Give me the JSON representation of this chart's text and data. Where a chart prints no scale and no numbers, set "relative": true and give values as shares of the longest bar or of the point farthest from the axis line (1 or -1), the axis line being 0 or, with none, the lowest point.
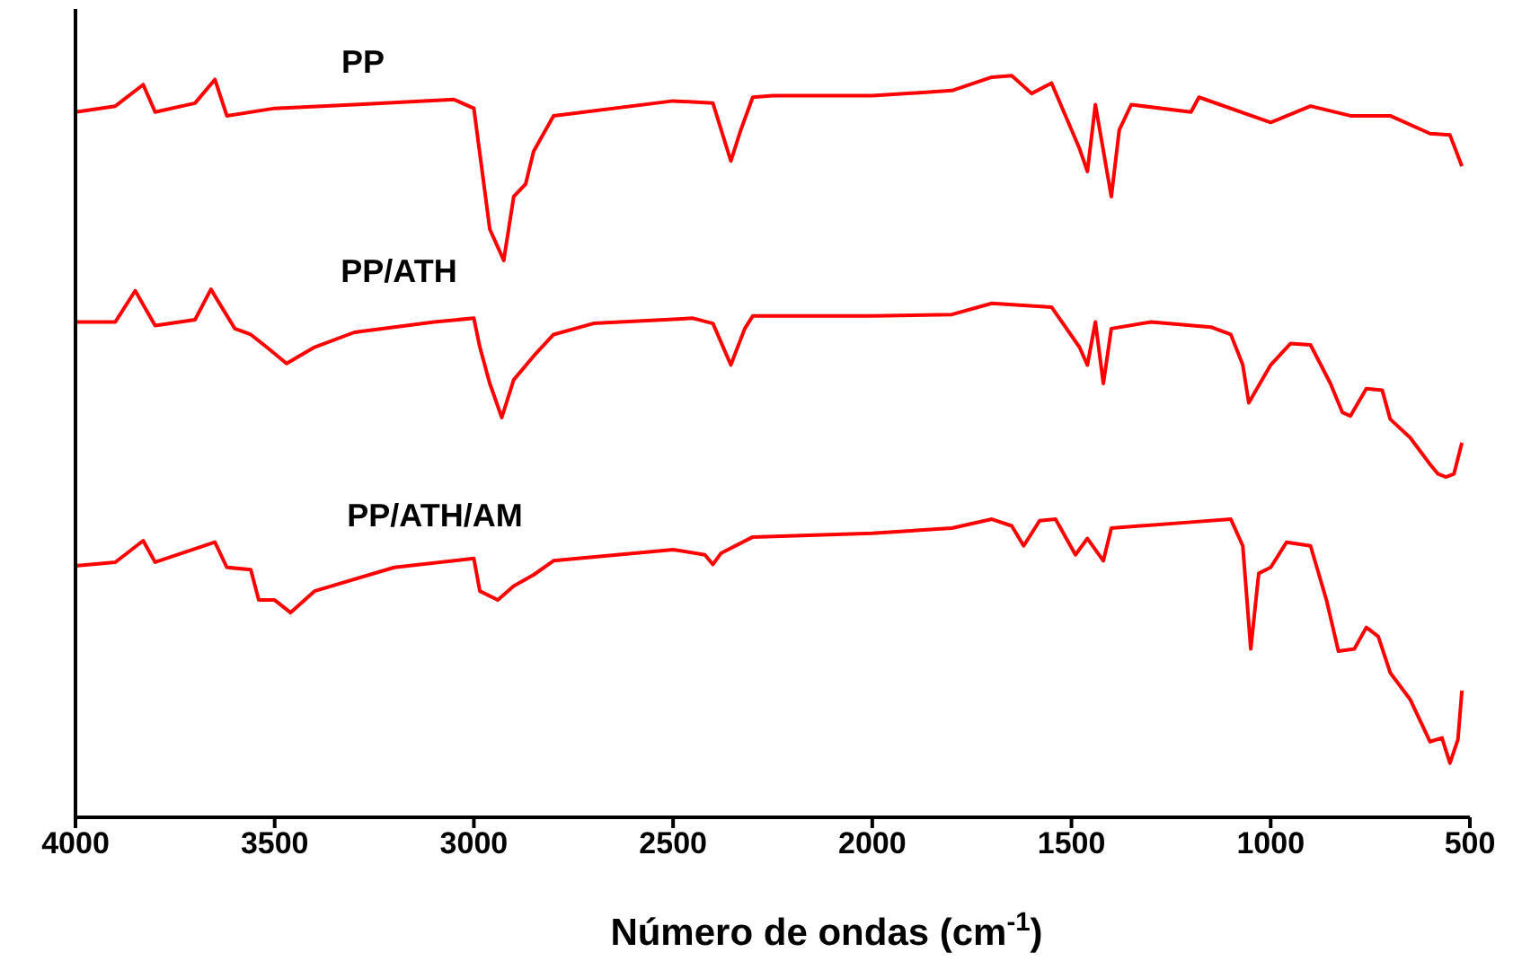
{
  "chart_data": {
    "type": "line",
    "relative": true,
    "xlabel": "Número de ondas (cm$^{-1}$)",
    "xlim": [
      4000,
      500
    ],
    "xticks": [
      4000,
      3500,
      3000,
      2500,
      2000,
      1500,
      1000,
      500
    ],
    "marker": "none",
    "line_style": "solid",
    "series": [
      {
        "name": "PP",
        "color": "#ff0000",
        "x": [
          4000,
          3900,
          3830,
          3800,
          3700,
          3650,
          3620,
          3500,
          3300,
          3050,
          3000,
          2960,
          2925,
          2900,
          2870,
          2850,
          2800,
          2500,
          2400,
          2355,
          2330,
          2300,
          2250,
          2000,
          1800,
          1700,
          1650,
          1600,
          1550,
          1480,
          1460,
          1440,
          1400,
          1380,
          1350,
          1200,
          1180,
          1000,
          900,
          800,
          700,
          600,
          550,
          520
        ],
        "values": [
          0.951,
          0.959,
          0.988,
          0.951,
          0.963,
          0.995,
          0.946,
          0.956,
          0.961,
          0.968,
          0.956,
          0.793,
          0.751,
          0.837,
          0.854,
          0.898,
          0.946,
          0.966,
          0.963,
          0.885,
          0.927,
          0.971,
          0.973,
          0.973,
          0.98,
          0.998,
          1,
          0.976,
          0.99,
          0.902,
          0.871,
          0.961,
          0.837,
          0.927,
          0.961,
          0.951,
          0.971,
          0.937,
          0.959,
          0.946,
          0.946,
          0.922,
          0.92,
          0.878
        ]
      },
      {
        "name": "PP/ATH",
        "color": "#ff0000",
        "x": [
          4000,
          3900,
          3850,
          3800,
          3700,
          3660,
          3600,
          3560,
          3520,
          3470,
          3400,
          3300,
          3100,
          3000,
          2985,
          2960,
          2930,
          2900,
          2850,
          2800,
          2700,
          2450,
          2400,
          2355,
          2320,
          2300,
          2000,
          1800,
          1700,
          1550,
          1480,
          1460,
          1440,
          1420,
          1400,
          1300,
          1150,
          1100,
          1070,
          1055,
          1000,
          950,
          900,
          850,
          820,
          800,
          760,
          720,
          700,
          650,
          600,
          580,
          560,
          540,
          520
        ],
        "values": [
          0.668,
          0.668,
          0.71,
          0.663,
          0.671,
          0.712,
          0.659,
          0.651,
          0.634,
          0.612,
          0.634,
          0.654,
          0.668,
          0.673,
          0.634,
          0.585,
          0.539,
          0.59,
          0.622,
          0.651,
          0.666,
          0.673,
          0.666,
          0.61,
          0.659,
          0.676,
          0.676,
          0.678,
          0.693,
          0.688,
          0.634,
          0.61,
          0.668,
          0.585,
          0.659,
          0.668,
          0.661,
          0.651,
          0.61,
          0.559,
          0.61,
          0.639,
          0.637,
          0.585,
          0.546,
          0.541,
          0.578,
          0.576,
          0.537,
          0.512,
          0.476,
          0.463,
          0.459,
          0.463,
          0.505
        ]
      },
      {
        "name": "PP/ATH/AM",
        "color": "#ff0000",
        "x": [
          4000,
          3900,
          3830,
          3800,
          3650,
          3620,
          3560,
          3540,
          3500,
          3460,
          3400,
          3200,
          3000,
          2985,
          2940,
          2900,
          2850,
          2800,
          2500,
          2420,
          2400,
          2380,
          2300,
          2000,
          1800,
          1700,
          1650,
          1620,
          1580,
          1540,
          1490,
          1460,
          1420,
          1400,
          1200,
          1100,
          1070,
          1050,
          1030,
          1000,
          960,
          900,
          860,
          830,
          790,
          760,
          730,
          700,
          650,
          600,
          570,
          550,
          530,
          520
        ],
        "values": [
          0.339,
          0.344,
          0.373,
          0.344,
          0.371,
          0.337,
          0.334,
          0.293,
          0.293,
          0.276,
          0.305,
          0.337,
          0.349,
          0.305,
          0.293,
          0.312,
          0.327,
          0.346,
          0.361,
          0.354,
          0.341,
          0.356,
          0.378,
          0.383,
          0.39,
          0.402,
          0.393,
          0.366,
          0.4,
          0.402,
          0.354,
          0.376,
          0.346,
          0.39,
          0.398,
          0.402,
          0.366,
          0.227,
          0.329,
          0.337,
          0.371,
          0.366,
          0.293,
          0.224,
          0.227,
          0.256,
          0.244,
          0.195,
          0.159,
          0.102,
          0.107,
          0.073,
          0.105,
          0.171
        ]
      }
    ]
  }
}
